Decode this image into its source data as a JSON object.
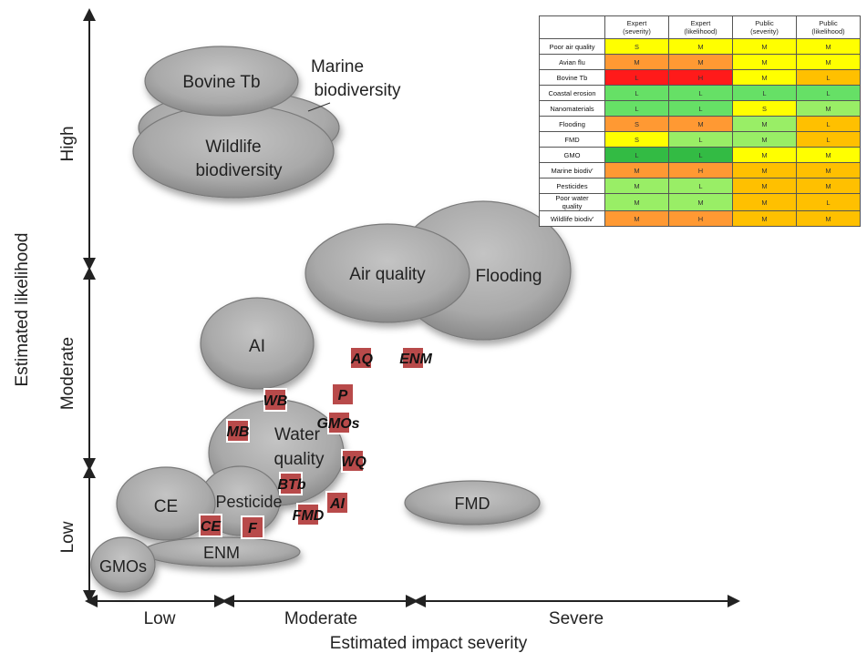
{
  "axes": {
    "y_title": "Estimated likelihood",
    "x_title": "Estimated impact severity",
    "y_levels": [
      "High",
      "Moderate",
      "Low"
    ],
    "x_levels": [
      "Low",
      "Moderate",
      "Severe"
    ]
  },
  "bubbles": [
    {
      "id": "marine-biodiversity",
      "label": "",
      "external_label": [
        "Marine",
        "biodiversity"
      ]
    },
    {
      "id": "wildlife-biodiversity",
      "label": [
        "Wildlife",
        "biodiversity"
      ]
    },
    {
      "id": "bovine-tb",
      "label": [
        "Bovine Tb"
      ]
    },
    {
      "id": "flooding",
      "label": [
        "Flooding"
      ]
    },
    {
      "id": "air-quality",
      "label": [
        "Air quality"
      ]
    },
    {
      "id": "ai",
      "label": [
        "AI"
      ]
    },
    {
      "id": "water-quality",
      "label": [
        "Water",
        "quality"
      ]
    },
    {
      "id": "pesticide",
      "label": [
        "Pesticide"
      ]
    },
    {
      "id": "ce",
      "label": [
        "CE"
      ]
    },
    {
      "id": "enm",
      "label": [
        "ENM"
      ]
    },
    {
      "id": "gmos",
      "label": [
        "GMOs"
      ]
    },
    {
      "id": "fmd",
      "label": [
        "FMD"
      ]
    }
  ],
  "markers": {
    "aq": "AQ",
    "enm": "ENM",
    "p": "P",
    "gmos": "GMOs",
    "wb": "WB",
    "mb": "MB",
    "wq": "WQ",
    "btb": "BTb",
    "ai": "AI",
    "fmd": "FMD",
    "ce": "CE",
    "f": "F"
  },
  "table": {
    "headers": [
      "",
      "Expert\n(severity)",
      "Expert\n(likelihood)",
      "Public\n(severity)",
      "Public\n(likelihood)"
    ],
    "rows": [
      {
        "name": "Poor air quality",
        "cells": [
          "S",
          "M",
          "M",
          "M"
        ]
      },
      {
        "name": "Avian flu",
        "cells": [
          "M",
          "M",
          "M",
          "M"
        ]
      },
      {
        "name": "Bovine Tb",
        "cells": [
          "L",
          "H",
          "M",
          "L"
        ]
      },
      {
        "name": "Coastal erosion",
        "cells": [
          "L",
          "L",
          "L",
          "L"
        ]
      },
      {
        "name": "Nanomaterials",
        "cells": [
          "L",
          "L",
          "S",
          "M"
        ]
      },
      {
        "name": "Flooding",
        "cells": [
          "S",
          "M",
          "M",
          "L"
        ]
      },
      {
        "name": "FMD",
        "cells": [
          "S",
          "L",
          "M",
          "L"
        ]
      },
      {
        "name": "GMO",
        "cells": [
          "L",
          "L",
          "M",
          "M"
        ]
      },
      {
        "name": "Marine biodiv'",
        "cells": [
          "M",
          "H",
          "M",
          "M"
        ]
      },
      {
        "name": "Pesticides",
        "cells": [
          "M",
          "L",
          "M",
          "M"
        ]
      },
      {
        "name": "Poor water\nquality",
        "cells": [
          "M",
          "M",
          "M",
          "L"
        ]
      },
      {
        "name": "Wildlife biodiv'",
        "cells": [
          "M",
          "H",
          "M",
          "M"
        ]
      }
    ],
    "colors": [
      [
        "#ffff00",
        "#ffff00",
        "#ffff00",
        "#ffff00"
      ],
      [
        "#ff9933",
        "#ff9933",
        "#ffff00",
        "#ffff00"
      ],
      [
        "#ff1a1a",
        "#ff1a1a",
        "#ffff00",
        "#ffc000"
      ],
      [
        "#66e066",
        "#66e066",
        "#66e066",
        "#66e066"
      ],
      [
        "#66e066",
        "#66e066",
        "#ffff00",
        "#99ee66"
      ],
      [
        "#ff9933",
        "#ff9933",
        "#99ee66",
        "#ffc000"
      ],
      [
        "#ffff00",
        "#99ee66",
        "#99ee66",
        "#ffc000"
      ],
      [
        "#33bb44",
        "#33bb44",
        "#ffff00",
        "#ffff00"
      ],
      [
        "#ff9933",
        "#ff9933",
        "#ffc000",
        "#ffc000"
      ],
      [
        "#99ee66",
        "#99ee66",
        "#ffc000",
        "#ffc000"
      ],
      [
        "#99ee66",
        "#99ee66",
        "#ffc000",
        "#ffc000"
      ],
      [
        "#ff9933",
        "#ff9933",
        "#ffc000",
        "#ffc000"
      ]
    ]
  },
  "colors": {
    "bubble_fill": "#a8a8a8",
    "marker_fill": "#b84a4a",
    "axis": "#222222"
  }
}
